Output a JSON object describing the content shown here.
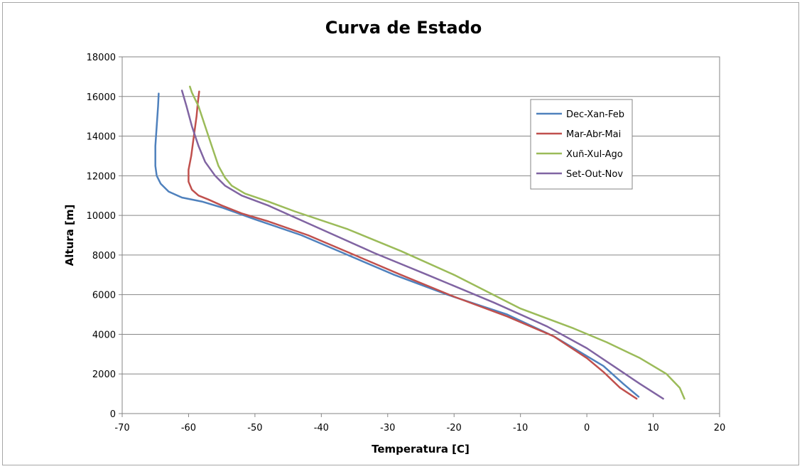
{
  "chart_data": {
    "type": "line",
    "title": "Curva de Estado",
    "xlabel": "Temperatura [C]",
    "ylabel": "Altura [m]",
    "xlim": [
      -70,
      20
    ],
    "ylim": [
      0,
      18000
    ],
    "x_ticks": [
      -70,
      -60,
      -50,
      -40,
      -30,
      -20,
      -10,
      0,
      10,
      20
    ],
    "y_ticks": [
      0,
      2000,
      4000,
      6000,
      8000,
      10000,
      12000,
      14000,
      16000,
      18000
    ],
    "grid": "horizontal",
    "legend_position": "right",
    "series": [
      {
        "name": "Dec-Xan-Feb",
        "color": "#4f81bd",
        "points": [
          [
            7.8,
            850
          ],
          [
            5.5,
            1500
          ],
          [
            2.5,
            2400
          ],
          [
            0,
            2900
          ],
          [
            -5,
            3900
          ],
          [
            -12,
            5000
          ],
          [
            -21,
            6000
          ],
          [
            -29,
            7000
          ],
          [
            -36,
            8000
          ],
          [
            -43,
            9000
          ],
          [
            -50,
            9800
          ],
          [
            -55,
            10400
          ],
          [
            -58,
            10700
          ],
          [
            -61,
            10900
          ],
          [
            -63,
            11200
          ],
          [
            -64.2,
            11600
          ],
          [
            -64.8,
            12000
          ],
          [
            -65,
            12500
          ],
          [
            -65,
            13500
          ],
          [
            -64.8,
            14500
          ],
          [
            -64.6,
            15500
          ],
          [
            -64.5,
            16150
          ]
        ]
      },
      {
        "name": "Mar-Abr-Mai",
        "color": "#c0504d",
        "points": [
          [
            7.5,
            750
          ],
          [
            5,
            1300
          ],
          [
            2.5,
            2100
          ],
          [
            0,
            2800
          ],
          [
            -5,
            3900
          ],
          [
            -12,
            4900
          ],
          [
            -20,
            5900
          ],
          [
            -28,
            7000
          ],
          [
            -35,
            8000
          ],
          [
            -42,
            9000
          ],
          [
            -48,
            9700
          ],
          [
            -52,
            10100
          ],
          [
            -55,
            10500
          ],
          [
            -57,
            10800
          ],
          [
            -58.5,
            11000
          ],
          [
            -59.5,
            11300
          ],
          [
            -60,
            11700
          ],
          [
            -60,
            12300
          ],
          [
            -59.6,
            13000
          ],
          [
            -59.2,
            14000
          ],
          [
            -58.8,
            15000
          ],
          [
            -58.6,
            15700
          ],
          [
            -58.4,
            16250
          ]
        ]
      },
      {
        "name": "Xuñ-Xul-Ago",
        "color": "#9bbb59",
        "points": [
          [
            14.7,
            750
          ],
          [
            14,
            1300
          ],
          [
            12,
            2000
          ],
          [
            8,
            2800
          ],
          [
            3,
            3600
          ],
          [
            -2,
            4300
          ],
          [
            -10,
            5300
          ],
          [
            -20,
            7000
          ],
          [
            -28,
            8200
          ],
          [
            -36,
            9300
          ],
          [
            -44,
            10200
          ],
          [
            -48,
            10700
          ],
          [
            -51.5,
            11100
          ],
          [
            -53.5,
            11500
          ],
          [
            -54.5,
            11900
          ],
          [
            -55.5,
            12500
          ],
          [
            -56.5,
            13500
          ],
          [
            -57.5,
            14500
          ],
          [
            -58.5,
            15500
          ],
          [
            -59.5,
            16200
          ],
          [
            -59.8,
            16500
          ]
        ]
      },
      {
        "name": "Set-Out-Nov",
        "color": "#8064a2",
        "points": [
          [
            11.5,
            750
          ],
          [
            8,
            1500
          ],
          [
            4,
            2400
          ],
          [
            0,
            3300
          ],
          [
            -6,
            4400
          ],
          [
            -14,
            5600
          ],
          [
            -24,
            7000
          ],
          [
            -32,
            8100
          ],
          [
            -40,
            9300
          ],
          [
            -48,
            10500
          ],
          [
            -52,
            11000
          ],
          [
            -54.5,
            11500
          ],
          [
            -56,
            12000
          ],
          [
            -57.5,
            12700
          ],
          [
            -58.5,
            13500
          ],
          [
            -59.5,
            14500
          ],
          [
            -60.3,
            15500
          ],
          [
            -61,
            16300
          ]
        ]
      }
    ]
  }
}
